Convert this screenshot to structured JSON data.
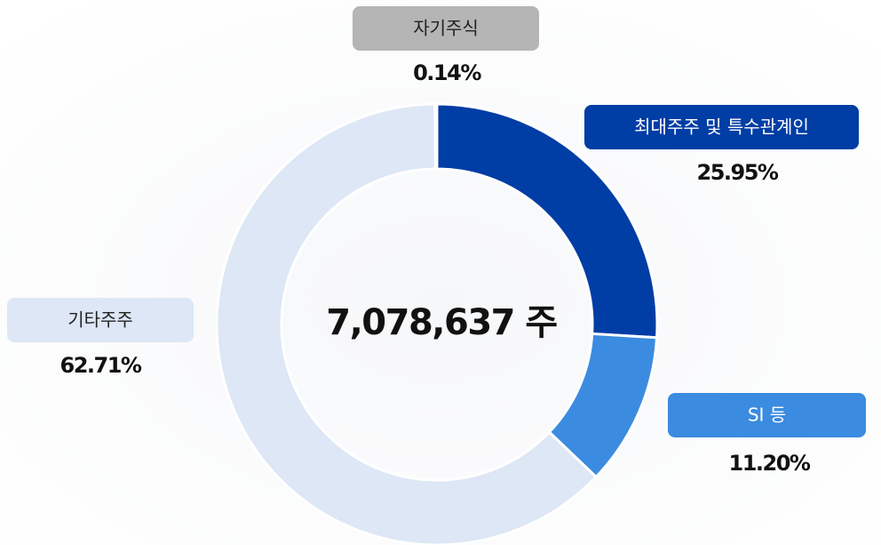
{
  "chart_data": {
    "type": "donut",
    "center_label": "7,078,637 주",
    "categories": [
      "최대주주 및 특수관계인",
      "SI 등",
      "기타주주",
      "자기주식"
    ],
    "values": [
      25.95,
      11.2,
      62.71,
      0.14
    ],
    "value_labels": [
      "25.95%",
      "11.20%",
      "62.71%",
      "0.14%"
    ],
    "colors": [
      "#003da5",
      "#3b8be0",
      "#dde7f5",
      "#b5b5b5"
    ]
  }
}
